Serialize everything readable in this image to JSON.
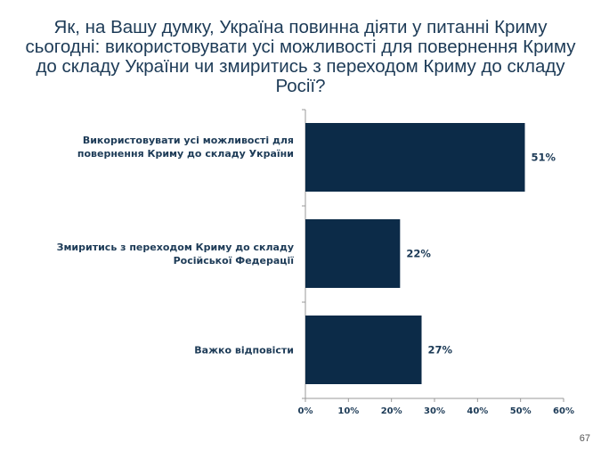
{
  "page_number": "67",
  "colors": {
    "bar": "#0c2b48",
    "text": "#1d3b57",
    "axis": "#999999"
  },
  "chart_data": {
    "type": "bar",
    "orientation": "horizontal",
    "title": "Як, на Вашу думку, Україна повинна діяти у питанні Криму сьогодні: використовувати усі можливості для повернення Криму до складу України чи змиритись з переходом Криму до складу Росії?",
    "categories": [
      [
        "Використовувати усі можливості для",
        "повернення Криму до складу України"
      ],
      [
        "Змиритись з переходом Криму до складу",
        "Російської Федерації"
      ],
      [
        "Важко відповісти"
      ]
    ],
    "values": [
      51,
      22,
      27
    ],
    "data_labels": [
      "51%",
      "22%",
      "27%"
    ],
    "xlim": [
      0,
      60
    ],
    "ticks": [
      0,
      10,
      20,
      30,
      40,
      50,
      60
    ],
    "tick_labels": [
      "0%",
      "10%",
      "20%",
      "30%",
      "40%",
      "50%",
      "60%"
    ],
    "grid": false,
    "legend": "none"
  }
}
